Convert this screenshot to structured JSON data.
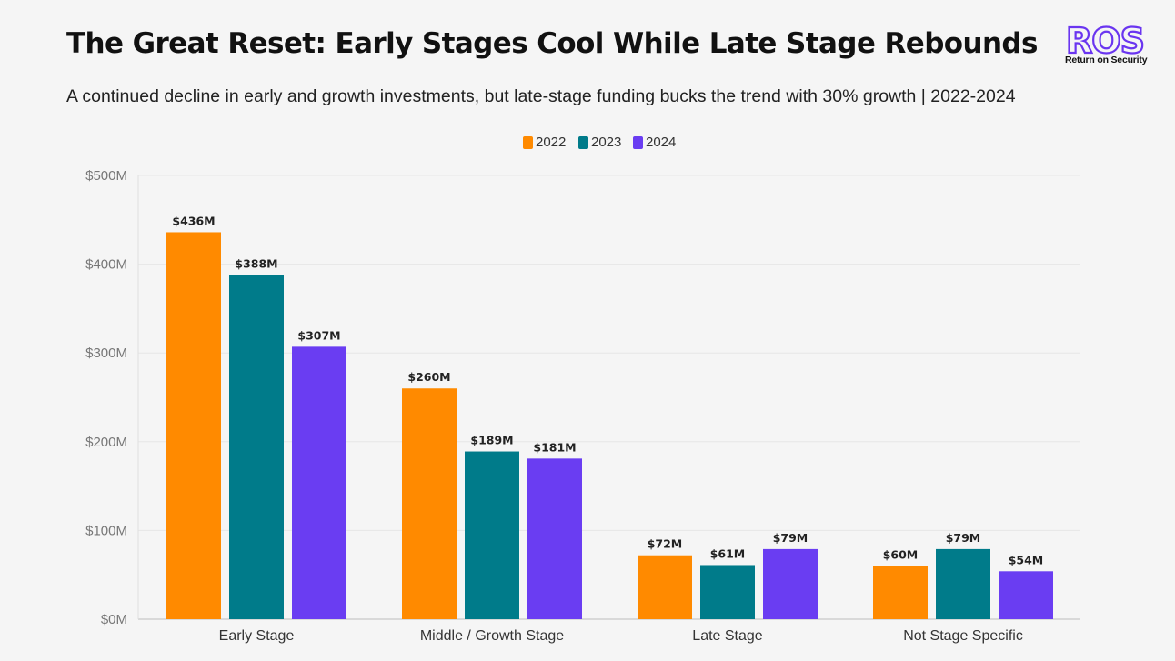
{
  "header": {
    "title": "The Great Reset: Early Stages Cool While Late Stage Rebounds",
    "subtitle": "A continued decline in early and growth investments, but late-stage funding bucks the trend with 30% growth | 2022-2024"
  },
  "logo": {
    "text": "ROS",
    "tagline": "Return on Security",
    "color": "#6a35f0"
  },
  "chart_data": {
    "type": "bar",
    "title": "The Great Reset: Early Stages Cool While Late Stage Rebounds",
    "subtitle": "A continued decline in early and growth investments, but late-stage funding bucks the trend with 30% growth | 2022-2024",
    "categories": [
      "Early Stage",
      "Middle / Growth Stage",
      "Late Stage",
      "Not Stage Specific"
    ],
    "series": [
      {
        "name": "2022",
        "color": "#ff8a00",
        "values": [
          436,
          260,
          72,
          60
        ],
        "labels": [
          "$436M",
          "$260M",
          "$72M",
          "$60M"
        ]
      },
      {
        "name": "2023",
        "color": "#007b8a",
        "values": [
          388,
          189,
          61,
          79
        ],
        "labels": [
          "$388M",
          "$189M",
          "$61M",
          "$79M"
        ]
      },
      {
        "name": "2024",
        "color": "#6a3df2",
        "values": [
          307,
          181,
          79,
          54
        ],
        "labels": [
          "$307M",
          "$181M",
          "$79M",
          "$54M"
        ]
      }
    ],
    "ylim": [
      0,
      500
    ],
    "yticks": [
      0,
      100,
      200,
      300,
      400,
      500
    ],
    "ytick_labels": [
      "$0M",
      "$100M",
      "$200M",
      "$300M",
      "$400M",
      "$500M"
    ],
    "xlabel": "",
    "ylabel": "",
    "unit": "$M",
    "grid": true,
    "legend": "top-center"
  }
}
